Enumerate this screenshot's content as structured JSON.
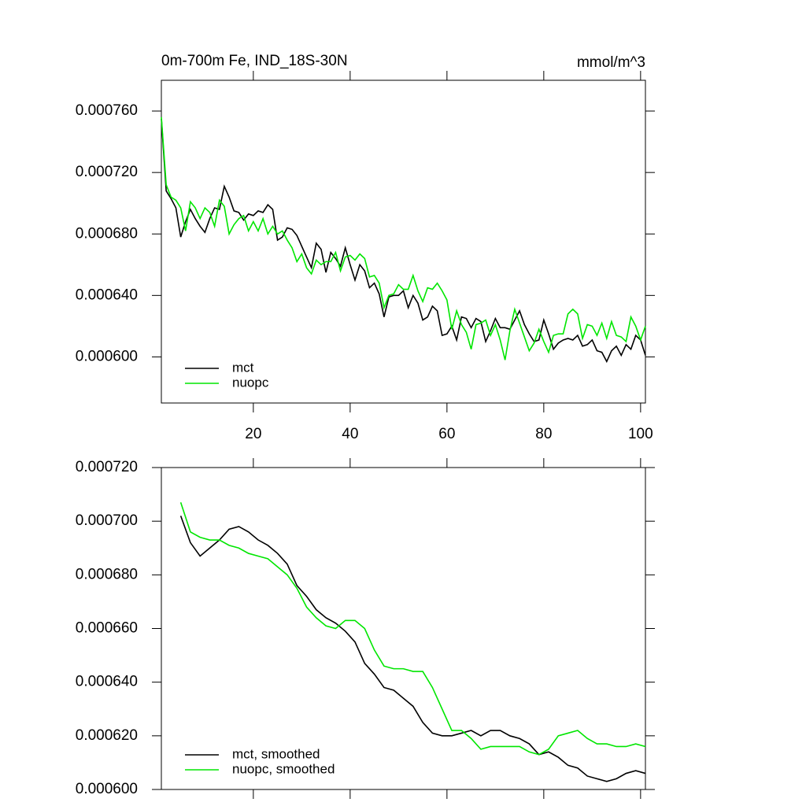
{
  "chart_data": [
    {
      "type": "line",
      "title": "0m-700m Fe, IND_18S-30N",
      "subtitle": "mmol/m^3",
      "x": [
        1,
        2,
        3,
        4,
        5,
        6,
        7,
        8,
        9,
        10,
        11,
        12,
        13,
        14,
        15,
        16,
        17,
        18,
        19,
        20,
        21,
        22,
        23,
        24,
        25,
        26,
        27,
        28,
        29,
        30,
        31,
        32,
        33,
        34,
        35,
        36,
        37,
        38,
        39,
        40,
        41,
        42,
        43,
        44,
        45,
        46,
        47,
        48,
        49,
        50,
        51,
        52,
        53,
        54,
        55,
        56,
        57,
        58,
        59,
        60,
        61,
        62,
        63,
        64,
        65,
        66,
        67,
        68,
        69,
        70,
        71,
        72,
        73,
        74,
        75,
        76,
        77,
        78,
        79,
        80,
        81,
        82,
        83,
        84,
        85,
        86,
        87,
        88,
        89,
        90,
        91,
        92,
        93,
        94,
        95,
        96,
        97,
        98,
        99,
        100,
        101
      ],
      "series": [
        {
          "name": "mct",
          "color": "#000000",
          "values": [
            0.000755,
            0.000708,
            0.000703,
            0.000697,
            0.000678,
            0.000688,
            0.000696,
            0.00069,
            0.000685,
            0.000681,
            0.00069,
            0.000697,
            0.000696,
            0.000711,
            0.000704,
            0.000695,
            0.000694,
            0.000689,
            0.000693,
            0.000692,
            0.000695,
            0.000694,
            0.000699,
            0.000696,
            0.000676,
            0.000678,
            0.000684,
            0.000683,
            0.000679,
            0.000672,
            0.000665,
            0.000658,
            0.000674,
            0.00067,
            0.000655,
            0.000668,
            0.000664,
            0.000659,
            0.000671,
            0.00066,
            0.00065,
            0.00066,
            0.000656,
            0.000645,
            0.000648,
            0.000641,
            0.000626,
            0.000639,
            0.00064,
            0.00064,
            0.000643,
            0.000632,
            0.00064,
            0.000635,
            0.000624,
            0.000626,
            0.000633,
            0.00063,
            0.000614,
            0.000615,
            0.00062,
            0.000611,
            0.000626,
            0.000625,
            0.000619,
            0.000625,
            0.000623,
            0.00061,
            0.000617,
            0.000625,
            0.000619,
            0.000619,
            0.000618,
            0.000624,
            0.00063,
            0.000621,
            0.000615,
            0.00061,
            0.000611,
            0.000624,
            0.000615,
            0.000605,
            0.000609,
            0.000611,
            0.000612,
            0.000611,
            0.000614,
            0.000607,
            0.000608,
            0.000611,
            0.000604,
            0.000603,
            0.000597,
            0.000604,
            0.000607,
            0.000601,
            0.000608,
            0.000605,
            0.000614,
            0.000611,
            0.000601
          ]
        },
        {
          "name": "nuopc",
          "color": "#00e600",
          "values": [
            0.000756,
            0.000712,
            0.000704,
            0.000702,
            0.000697,
            0.000682,
            0.000701,
            0.000697,
            0.00069,
            0.000697,
            0.000694,
            0.000685,
            0.000702,
            0.000698,
            0.00068,
            0.000686,
            0.00069,
            0.000692,
            0.000682,
            0.000688,
            0.000682,
            0.00069,
            0.00068,
            0.000685,
            0.00068,
            0.000682,
            0.000676,
            0.000671,
            0.000662,
            0.000667,
            0.000658,
            0.000654,
            0.000663,
            0.00066,
            0.000662,
            0.000662,
            0.000668,
            0.000656,
            0.000665,
            0.000666,
            0.000663,
            0.000667,
            0.000664,
            0.000652,
            0.000653,
            0.000648,
            0.000632,
            0.00064,
            0.000641,
            0.000647,
            0.000644,
            0.000644,
            0.000653,
            0.000643,
            0.000636,
            0.000645,
            0.000644,
            0.000648,
            0.000643,
            0.000637,
            0.000618,
            0.00063,
            0.000621,
            0.000616,
            0.000605,
            0.000621,
            0.000622,
            0.000624,
            0.000614,
            0.000621,
            0.000611,
            0.000598,
            0.000617,
            0.000631,
            0.000622,
            0.000613,
            0.000604,
            0.000609,
            0.000618,
            0.00061,
            0.000603,
            0.000614,
            0.000615,
            0.000615,
            0.000628,
            0.000631,
            0.000628,
            0.000612,
            0.000621,
            0.00062,
            0.000614,
            0.000622,
            0.000612,
            0.000623,
            0.000614,
            0.000613,
            0.00061,
            0.000626,
            0.00062,
            0.000611,
            0.00062
          ]
        }
      ],
      "xlim": [
        1,
        101
      ],
      "xticks": [
        20,
        40,
        60,
        80,
        100
      ],
      "ylim": [
        0.00057,
        0.00078
      ],
      "yticks": [
        {
          "value": 0.0006,
          "label": "0.000600"
        },
        {
          "value": 0.00064,
          "label": "0.000640"
        },
        {
          "value": 0.00068,
          "label": "0.000680"
        },
        {
          "value": 0.00072,
          "label": "0.000720"
        },
        {
          "value": 0.00076,
          "label": "0.000760"
        }
      ],
      "legend": "lower left"
    },
    {
      "type": "line",
      "x": [
        5,
        7,
        9,
        11,
        13,
        15,
        17,
        19,
        21,
        23,
        25,
        27,
        29,
        31,
        33,
        35,
        37,
        39,
        41,
        43,
        45,
        47,
        49,
        51,
        53,
        55,
        57,
        59,
        61,
        63,
        65,
        67,
        69,
        71,
        73,
        75,
        77,
        79,
        81,
        83,
        85,
        87,
        89,
        91,
        93,
        95,
        97,
        99,
        101
      ],
      "series": [
        {
          "name": "mct, smoothed",
          "color": "#000000",
          "values": [
            0.000702,
            0.000692,
            0.000687,
            0.00069,
            0.000693,
            0.000697,
            0.000698,
            0.000696,
            0.000693,
            0.000691,
            0.000688,
            0.000684,
            0.000676,
            0.000672,
            0.000667,
            0.000664,
            0.000662,
            0.000659,
            0.000655,
            0.000647,
            0.000643,
            0.000638,
            0.000637,
            0.000634,
            0.000631,
            0.000625,
            0.000621,
            0.00062,
            0.00062,
            0.000621,
            0.000622,
            0.00062,
            0.000622,
            0.000622,
            0.00062,
            0.000619,
            0.000617,
            0.000613,
            0.000614,
            0.000612,
            0.000609,
            0.000608,
            0.000605,
            0.000604,
            0.000603,
            0.000604,
            0.000606,
            0.000607,
            0.000606
          ]
        },
        {
          "name": "nuopc, smoothed",
          "color": "#00e600",
          "values": [
            0.000707,
            0.000696,
            0.000694,
            0.000693,
            0.000693,
            0.000691,
            0.00069,
            0.000688,
            0.000687,
            0.000686,
            0.000683,
            0.00068,
            0.000675,
            0.000668,
            0.000664,
            0.000661,
            0.00066,
            0.000663,
            0.000663,
            0.00066,
            0.000652,
            0.000646,
            0.000645,
            0.000645,
            0.000644,
            0.000644,
            0.000638,
            0.00063,
            0.000622,
            0.000622,
            0.000619,
            0.000615,
            0.000616,
            0.000616,
            0.000616,
            0.000616,
            0.000614,
            0.000613,
            0.000615,
            0.00062,
            0.000621,
            0.000622,
            0.000619,
            0.000617,
            0.000617,
            0.000616,
            0.000616,
            0.000617,
            0.000616
          ]
        }
      ],
      "xlim": [
        1,
        101
      ],
      "xticks": [
        20,
        40,
        60,
        80,
        100
      ],
      "ylim": [
        0.0006,
        0.00072
      ],
      "yticks": [
        {
          "value": 0.0006,
          "label": "0.000600"
        },
        {
          "value": 0.00062,
          "label": "0.000620"
        },
        {
          "value": 0.00064,
          "label": "0.000640"
        },
        {
          "value": 0.00066,
          "label": "0.000660"
        },
        {
          "value": 0.00068,
          "label": "0.000680"
        },
        {
          "value": 0.0007,
          "label": "0.000700"
        },
        {
          "value": 0.00072,
          "label": "0.000720"
        }
      ],
      "legend": "lower left"
    }
  ]
}
